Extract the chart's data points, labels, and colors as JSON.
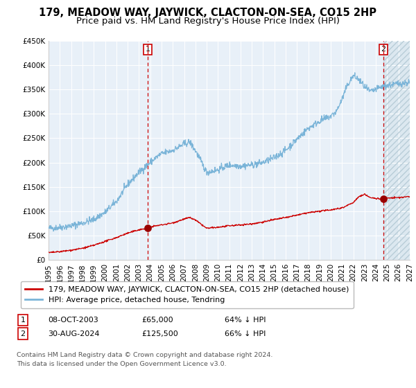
{
  "title": "179, MEADOW WAY, JAYWICK, CLACTON-ON-SEA, CO15 2HP",
  "subtitle": "Price paid vs. HM Land Registry's House Price Index (HPI)",
  "ylim": [
    0,
    450000
  ],
  "xlim_start": 1995.0,
  "xlim_end": 2027.0,
  "background_color": "#e8f0f8",
  "grid_color": "#d0d8e4",
  "sale1_date": 2003.77,
  "sale1_price": 65000,
  "sale2_date": 2024.66,
  "sale2_price": 125500,
  "hpi_color": "#7ab4d8",
  "price_color": "#cc0000",
  "marker_color": "#990000",
  "legend_label_price": "179, MEADOW WAY, JAYWICK, CLACTON-ON-SEA, CO15 2HP (detached house)",
  "legend_label_hpi": "HPI: Average price, detached house, Tendring",
  "table_row1": [
    "1",
    "08-OCT-2003",
    "£65,000",
    "64% ↓ HPI"
  ],
  "table_row2": [
    "2",
    "30-AUG-2024",
    "£125,500",
    "66% ↓ HPI"
  ],
  "footer": "Contains HM Land Registry data © Crown copyright and database right 2024.\nThis data is licensed under the Open Government Licence v3.0.",
  "title_fontsize": 10.5,
  "subtitle_fontsize": 9.5,
  "tick_fontsize": 7.5,
  "legend_fontsize": 8,
  "table_fontsize": 8
}
